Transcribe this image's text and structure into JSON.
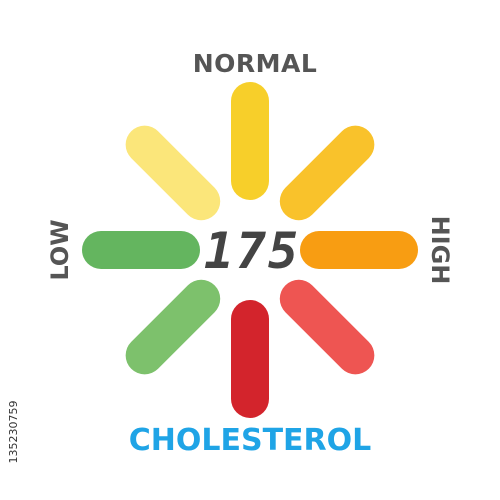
{
  "gauge": {
    "labels": {
      "top": "NORMAL",
      "left": "LOW",
      "right": "HIGH"
    },
    "readout": "175",
    "segments": [
      {
        "id": "top",
        "color": "#f7cf2a"
      },
      {
        "id": "top-right",
        "color": "#f9c22b"
      },
      {
        "id": "right",
        "color": "#f89d12"
      },
      {
        "id": "bottom-right",
        "color": "#ee5552"
      },
      {
        "id": "bottom",
        "color": "#d3242c"
      },
      {
        "id": "bottom-left",
        "color": "#7dc16c"
      },
      {
        "id": "left",
        "color": "#64b55f"
      },
      {
        "id": "top-left",
        "color": "#fbe67a"
      }
    ]
  },
  "title": "CHOLESTEROL",
  "side_id": "135230759"
}
